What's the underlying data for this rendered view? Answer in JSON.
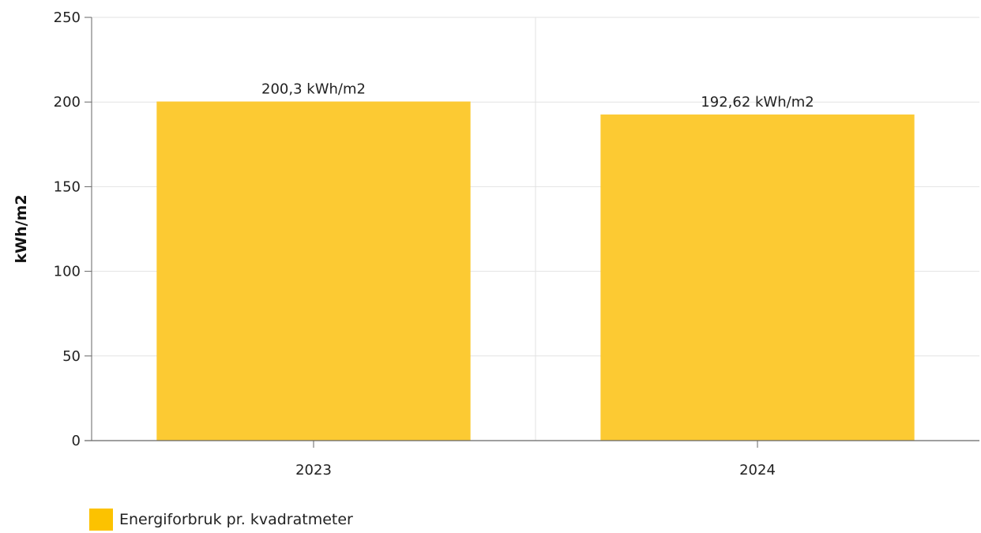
{
  "colors": {
    "bar": "#fcca33",
    "legend_swatch": "#fcc200",
    "grid": "#e2e2e2",
    "axis": "#666666",
    "text": "#222222"
  },
  "chart_data": {
    "type": "bar",
    "categories": [
      "2023",
      "2024"
    ],
    "series": [
      {
        "name": "Energiforbruk pr. kvadratmeter",
        "values": [
          200.3,
          192.62
        ],
        "data_labels": [
          "200,3 kWh/m2",
          "192,62 kWh/m2"
        ]
      }
    ],
    "ylabel": "kWh/m2",
    "xlabel": "",
    "ylim": [
      0,
      250
    ],
    "yticks": [
      0,
      50,
      100,
      150,
      200,
      250
    ],
    "grid": true,
    "legend_position": "bottom-left"
  }
}
